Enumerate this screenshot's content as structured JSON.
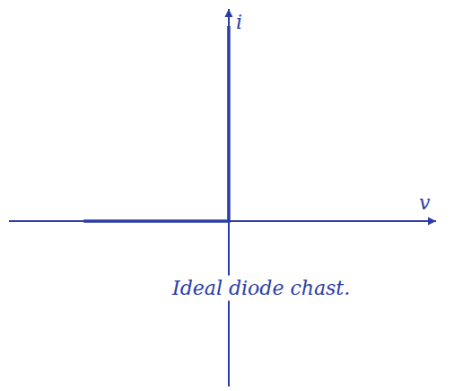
{
  "chart_data": {
    "type": "line",
    "xlabel": "v",
    "ylabel": "i",
    "annotations": [
      {
        "text": "Ideal diode chast."
      }
    ],
    "x": [
      -3.5,
      0,
      0
    ],
    "values": [
      0,
      0,
      4.6
    ],
    "color": "#2b3ca8",
    "xlim": [
      -5.3,
      5
    ],
    "ylim": [
      -3.9,
      5
    ],
    "xticks": [],
    "yticks": [],
    "grid": false,
    "tick_labels": false
  }
}
